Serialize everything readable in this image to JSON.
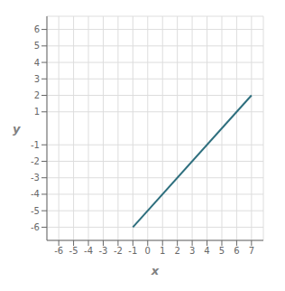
{
  "chart_data": {
    "type": "line",
    "x": [
      -1,
      7
    ],
    "values": [
      -6,
      2
    ],
    "color": "#2e6f7e",
    "xlabel": "x",
    "ylabel": "y",
    "xlim": [
      -6.8,
      7.8
    ],
    "ylim": [
      -6.8,
      6.8
    ],
    "xticks": [
      -6,
      -5,
      -4,
      -3,
      -2,
      -1,
      0,
      1,
      2,
      3,
      4,
      5,
      6,
      7
    ],
    "yticks": [
      -6,
      -5,
      -4,
      -3,
      -2,
      -1,
      1,
      2,
      3,
      4,
      5,
      6
    ],
    "grid": true
  }
}
